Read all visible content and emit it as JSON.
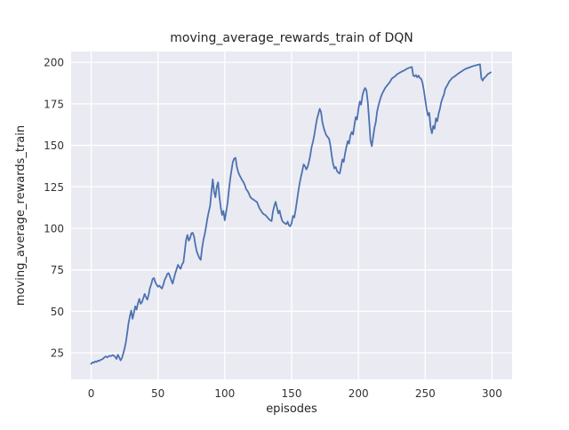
{
  "chart_data": {
    "type": "line",
    "title": "moving_average_rewards_train of DQN",
    "xlabel": "episodes",
    "ylabel": "moving_average_rewards_train",
    "x_ticks": [
      0,
      50,
      100,
      150,
      200,
      250,
      300
    ],
    "y_ticks": [
      25,
      50,
      75,
      100,
      125,
      150,
      175,
      200
    ],
    "xlim": [
      -15,
      315
    ],
    "ylim": [
      9,
      206.5
    ],
    "grid": true,
    "legend": "none",
    "style": {
      "line_color": "#4c72b0",
      "axes_background": "#eaeaf2",
      "grid_color": "#ffffff",
      "text_color": "#262626",
      "figure_background": "#ffffff"
    },
    "series": [
      {
        "name": "DQN",
        "points": [
          [
            0,
            18.3
          ],
          [
            1,
            19.3
          ],
          [
            2,
            19.0
          ],
          [
            3,
            19.8
          ],
          [
            4,
            19.5
          ],
          [
            5,
            20.3
          ],
          [
            6,
            20.0
          ],
          [
            7,
            20.8
          ],
          [
            8,
            21.0
          ],
          [
            9,
            21.5
          ],
          [
            10,
            22.4
          ],
          [
            11,
            22.8
          ],
          [
            12,
            22.2
          ],
          [
            13,
            22.8
          ],
          [
            14,
            23.2
          ],
          [
            15,
            23.0
          ],
          [
            16,
            23.6
          ],
          [
            17,
            23.2
          ],
          [
            18,
            22.6
          ],
          [
            19,
            21.3
          ],
          [
            20,
            23.8
          ],
          [
            21,
            22.3
          ],
          [
            22,
            20.4
          ],
          [
            23,
            21.8
          ],
          [
            24,
            24.5
          ],
          [
            25,
            27.5
          ],
          [
            26,
            31.5
          ],
          [
            27,
            37.0
          ],
          [
            28,
            43.0
          ],
          [
            29,
            47.0
          ],
          [
            30,
            50.5
          ],
          [
            31,
            45.5
          ],
          [
            32,
            49.0
          ],
          [
            33,
            53.0
          ],
          [
            34,
            51.0
          ],
          [
            35,
            55.0
          ],
          [
            36,
            57.5
          ],
          [
            37,
            54.5
          ],
          [
            38,
            55.5
          ],
          [
            39,
            58.0
          ],
          [
            40,
            60.5
          ],
          [
            41,
            58.5
          ],
          [
            42,
            57.0
          ],
          [
            43,
            60.0
          ],
          [
            44,
            64.0
          ],
          [
            45,
            66.5
          ],
          [
            46,
            69.5
          ],
          [
            47,
            70.0
          ],
          [
            48,
            67.5
          ],
          [
            49,
            66.0
          ],
          [
            50,
            64.8
          ],
          [
            51,
            65.5
          ],
          [
            52,
            64.5
          ],
          [
            53,
            63.7
          ],
          [
            54,
            66.0
          ],
          [
            55,
            69.0
          ],
          [
            56,
            70.5
          ],
          [
            57,
            72.5
          ],
          [
            58,
            73.0
          ],
          [
            59,
            71.0
          ],
          [
            60,
            68.5
          ],
          [
            61,
            66.7
          ],
          [
            62,
            70.0
          ],
          [
            63,
            73.0
          ],
          [
            64,
            75.5
          ],
          [
            65,
            78.0
          ],
          [
            66,
            76.5
          ],
          [
            67,
            75.6
          ],
          [
            68,
            78.3
          ],
          [
            69,
            79.5
          ],
          [
            70,
            86.0
          ],
          [
            71,
            93.0
          ],
          [
            72,
            96.0
          ],
          [
            73,
            92.5
          ],
          [
            74,
            94.0
          ],
          [
            75,
            97.0
          ],
          [
            76,
            97.3
          ],
          [
            77,
            95.0
          ],
          [
            78,
            90.0
          ],
          [
            79,
            86.0
          ],
          [
            80,
            84.0
          ],
          [
            81,
            82.0
          ],
          [
            82,
            81.0
          ],
          [
            83,
            88.0
          ],
          [
            84,
            93.0
          ],
          [
            85,
            96.5
          ],
          [
            86,
            101.0
          ],
          [
            87,
            106.0
          ],
          [
            88,
            110.0
          ],
          [
            89,
            113.5
          ],
          [
            90,
            122.0
          ],
          [
            91,
            129.5
          ],
          [
            92,
            122.0
          ],
          [
            93,
            118.7
          ],
          [
            94,
            125.0
          ],
          [
            95,
            127.7
          ],
          [
            96,
            119.0
          ],
          [
            97,
            112.5
          ],
          [
            98,
            108.0
          ],
          [
            99,
            110.5
          ],
          [
            100,
            104.8
          ],
          [
            101,
            110.0
          ],
          [
            102,
            115.0
          ],
          [
            103,
            122.5
          ],
          [
            104,
            129.5
          ],
          [
            105,
            135.0
          ],
          [
            106,
            140.0
          ],
          [
            107,
            142.0
          ],
          [
            108,
            142.5
          ],
          [
            109,
            137.0
          ],
          [
            110,
            134.0
          ],
          [
            111,
            132.0
          ],
          [
            112,
            130.5
          ],
          [
            113,
            129.0
          ],
          [
            114,
            127.7
          ],
          [
            115,
            126.0
          ],
          [
            116,
            123.5
          ],
          [
            117,
            122.5
          ],
          [
            118,
            121.0
          ],
          [
            119,
            119.0
          ],
          [
            120,
            118.0
          ],
          [
            121,
            117.5
          ],
          [
            122,
            117.0
          ],
          [
            123,
            116.3
          ],
          [
            124,
            116.0
          ],
          [
            125,
            114.0
          ],
          [
            126,
            112.0
          ],
          [
            127,
            110.8
          ],
          [
            128,
            109.5
          ],
          [
            129,
            108.5
          ],
          [
            130,
            108.2
          ],
          [
            131,
            107.5
          ],
          [
            132,
            106.5
          ],
          [
            133,
            105.5
          ],
          [
            134,
            104.8
          ],
          [
            135,
            104.4
          ],
          [
            136,
            110.0
          ],
          [
            137,
            113.5
          ],
          [
            138,
            116.0
          ],
          [
            139,
            112.5
          ],
          [
            140,
            109.0
          ],
          [
            141,
            110.7
          ],
          [
            142,
            107.0
          ],
          [
            143,
            104.5
          ],
          [
            144,
            103.5
          ],
          [
            145,
            103.0
          ],
          [
            146,
            102.5
          ],
          [
            147,
            104.0
          ],
          [
            148,
            101.8
          ],
          [
            149,
            101.2
          ],
          [
            150,
            103.0
          ],
          [
            151,
            107.5
          ],
          [
            152,
            106.5
          ],
          [
            153,
            111.0
          ],
          [
            154,
            116.5
          ],
          [
            155,
            122.0
          ],
          [
            156,
            127.0
          ],
          [
            157,
            131.0
          ],
          [
            158,
            134.5
          ],
          [
            159,
            138.5
          ],
          [
            160,
            137.5
          ],
          [
            161,
            135.5
          ],
          [
            162,
            137.0
          ],
          [
            163,
            140.0
          ],
          [
            164,
            144.0
          ],
          [
            165,
            149.0
          ],
          [
            166,
            152.0
          ],
          [
            167,
            156.5
          ],
          [
            168,
            161.5
          ],
          [
            169,
            166.0
          ],
          [
            170,
            169.0
          ],
          [
            171,
            172.0
          ],
          [
            172,
            170.0
          ],
          [
            173,
            164.0
          ],
          [
            174,
            160.5
          ],
          [
            175,
            158.0
          ],
          [
            176,
            156.0
          ],
          [
            177,
            155.0
          ],
          [
            178,
            154.0
          ],
          [
            179,
            150.0
          ],
          [
            180,
            144.0
          ],
          [
            181,
            139.0
          ],
          [
            182,
            136.0
          ],
          [
            183,
            137.0
          ],
          [
            184,
            134.5
          ],
          [
            185,
            133.5
          ],
          [
            186,
            133.0
          ],
          [
            187,
            137.0
          ],
          [
            188,
            141.5
          ],
          [
            189,
            140.0
          ],
          [
            190,
            145.0
          ],
          [
            191,
            149.0
          ],
          [
            192,
            152.5
          ],
          [
            193,
            151.0
          ],
          [
            194,
            156.0
          ],
          [
            195,
            158.0
          ],
          [
            196,
            156.5
          ],
          [
            197,
            162.0
          ],
          [
            198,
            167.0
          ],
          [
            199,
            165.5
          ],
          [
            200,
            172.0
          ],
          [
            201,
            176.5
          ],
          [
            202,
            174.5
          ],
          [
            203,
            180.0
          ],
          [
            204,
            183.0
          ],
          [
            205,
            184.5
          ],
          [
            206,
            183.0
          ],
          [
            207,
            176.0
          ],
          [
            208,
            165.0
          ],
          [
            209,
            153.0
          ],
          [
            210,
            149.5
          ],
          [
            211,
            155.0
          ],
          [
            212,
            160.5
          ],
          [
            213,
            164.0
          ],
          [
            214,
            170.5
          ],
          [
            215,
            174.0
          ],
          [
            216,
            177.0
          ],
          [
            217,
            179.5
          ],
          [
            218,
            181.5
          ],
          [
            219,
            183.0
          ],
          [
            220,
            184.5
          ],
          [
            221,
            185.5
          ],
          [
            222,
            186.6
          ],
          [
            223,
            187.5
          ],
          [
            224,
            188.8
          ],
          [
            225,
            190.2
          ],
          [
            226,
            190.8
          ],
          [
            227,
            191.3
          ],
          [
            228,
            192.0
          ],
          [
            229,
            192.9
          ],
          [
            230,
            193.3
          ],
          [
            231,
            193.8
          ],
          [
            232,
            194.2
          ],
          [
            233,
            194.7
          ],
          [
            234,
            195.0
          ],
          [
            235,
            195.5
          ],
          [
            236,
            196.0
          ],
          [
            237,
            196.4
          ],
          [
            238,
            196.7
          ],
          [
            239,
            197.0
          ],
          [
            240,
            197.2
          ],
          [
            241,
            192.0
          ],
          [
            242,
            191.5
          ],
          [
            243,
            192.3
          ],
          [
            244,
            191.0
          ],
          [
            245,
            192.0
          ],
          [
            246,
            190.5
          ],
          [
            247,
            190.0
          ],
          [
            248,
            187.5
          ],
          [
            249,
            183.0
          ],
          [
            250,
            177.5
          ],
          [
            251,
            172.0
          ],
          [
            252,
            168.0
          ],
          [
            253,
            169.5
          ],
          [
            254,
            161.0
          ],
          [
            255,
            157.2
          ],
          [
            256,
            161.7
          ],
          [
            257,
            160.0
          ],
          [
            258,
            166.2
          ],
          [
            259,
            164.5
          ],
          [
            260,
            169.0
          ],
          [
            261,
            172.0
          ],
          [
            262,
            176.0
          ],
          [
            263,
            178.5
          ],
          [
            264,
            180.5
          ],
          [
            265,
            184.0
          ],
          [
            266,
            185.5
          ],
          [
            267,
            187.0
          ],
          [
            268,
            188.5
          ],
          [
            269,
            189.5
          ],
          [
            270,
            190.5
          ],
          [
            272,
            191.5
          ],
          [
            274,
            192.8
          ],
          [
            276,
            193.9
          ],
          [
            278,
            195.0
          ],
          [
            280,
            196.0
          ],
          [
            282,
            196.6
          ],
          [
            284,
            197.2
          ],
          [
            286,
            197.8
          ],
          [
            288,
            198.2
          ],
          [
            290,
            198.6
          ],
          [
            291,
            198.8
          ],
          [
            292,
            190.5
          ],
          [
            293,
            189.0
          ],
          [
            294,
            190.5
          ],
          [
            295,
            191.2
          ],
          [
            296,
            192.0
          ],
          [
            297,
            193.0
          ],
          [
            298,
            193.4
          ],
          [
            299,
            194.0
          ]
        ]
      }
    ]
  }
}
